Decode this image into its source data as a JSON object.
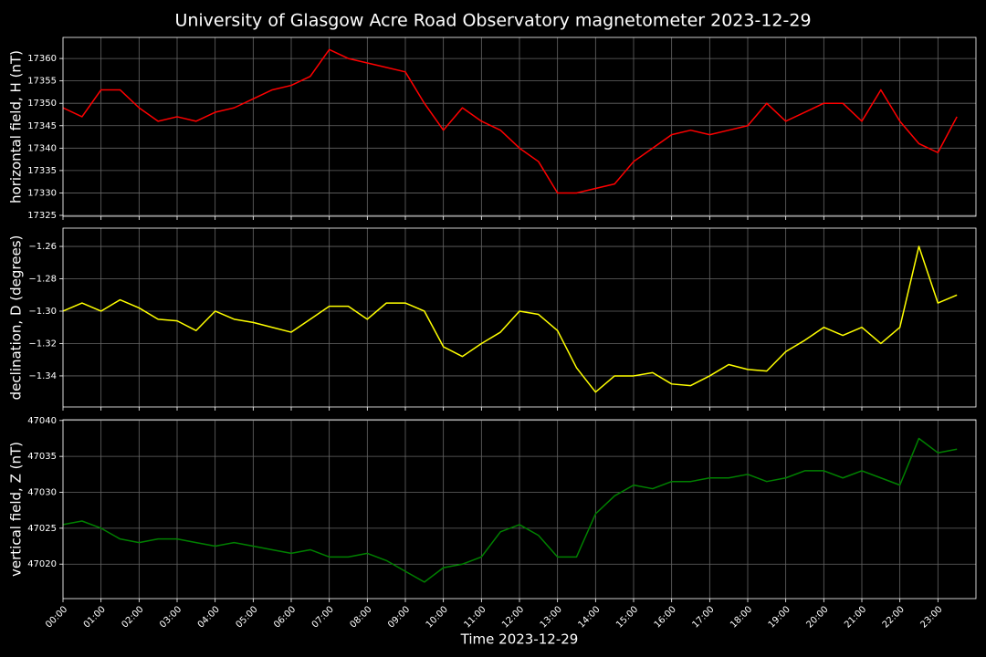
{
  "title": "University of Glasgow Acre Road Observatory magnetometer 2023-12-29",
  "xlabel": "Time 2023-12-29",
  "xlim": [
    0,
    24
  ],
  "xticks": [
    {
      "value": 0,
      "label": "00:00"
    },
    {
      "value": 1,
      "label": "01:00"
    },
    {
      "value": 2,
      "label": "02:00"
    },
    {
      "value": 3,
      "label": "03:00"
    },
    {
      "value": 4,
      "label": "04:00"
    },
    {
      "value": 5,
      "label": "05:00"
    },
    {
      "value": 6,
      "label": "06:00"
    },
    {
      "value": 7,
      "label": "07:00"
    },
    {
      "value": 8,
      "label": "08:00"
    },
    {
      "value": 9,
      "label": "09:00"
    },
    {
      "value": 10,
      "label": "10:00"
    },
    {
      "value": 11,
      "label": "11:00"
    },
    {
      "value": 12,
      "label": "12:00"
    },
    {
      "value": 13,
      "label": "13:00"
    },
    {
      "value": 14,
      "label": "14:00"
    },
    {
      "value": 15,
      "label": "15:00"
    },
    {
      "value": 16,
      "label": "16:00"
    },
    {
      "value": 17,
      "label": "17:00"
    },
    {
      "value": 18,
      "label": "18:00"
    },
    {
      "value": 19,
      "label": "19:00"
    },
    {
      "value": 20,
      "label": "20:00"
    },
    {
      "value": 21,
      "label": "21:00"
    },
    {
      "value": 22,
      "label": "22:00"
    },
    {
      "value": 23,
      "label": "23:00"
    }
  ],
  "x": [
    0,
    0.5,
    1,
    1.5,
    2,
    2.5,
    3,
    3.5,
    4,
    4.5,
    5,
    5.5,
    6,
    6.5,
    7,
    7.5,
    8,
    8.5,
    9,
    9.5,
    10,
    10.5,
    11,
    11.5,
    12,
    12.5,
    13,
    13.5,
    14,
    14.5,
    15,
    15.5,
    16,
    16.5,
    17,
    17.5,
    18,
    18.5,
    19,
    19.5,
    20,
    20.5,
    21,
    21.5,
    22,
    22.5,
    23,
    23.5
  ],
  "chart_data": [
    {
      "type": "line",
      "ylabel": "horizontal field, H (nT)",
      "grid": true,
      "ylim": [
        17324.8,
        17364.7
      ],
      "yticks": [
        17325,
        17330,
        17335,
        17340,
        17345,
        17350,
        17355,
        17360
      ],
      "series": [
        {
          "color": "#ff0000",
          "values": [
            17349,
            17347,
            17353,
            17353,
            17349,
            17346,
            17347,
            17346,
            17348,
            17349,
            17351,
            17353,
            17354,
            17356,
            17362,
            17360,
            17359,
            17358,
            17357,
            17350,
            17344,
            17349,
            17346,
            17344,
            17340,
            17337,
            17330,
            17330,
            17331,
            17332,
            17337,
            17340,
            17343,
            17344,
            17343,
            17344,
            17345,
            17350,
            17346,
            17348,
            17350,
            17350,
            17346,
            17353,
            17346,
            17341,
            17339,
            17347
          ]
        }
      ]
    },
    {
      "type": "line",
      "ylabel": "declination, D (degrees)",
      "grid": true,
      "ylim": [
        -1.3592,
        -1.2487
      ],
      "yticks": [
        {
          "value": -1.34,
          "label": "−1.34"
        },
        {
          "value": -1.32,
          "label": "−1.32"
        },
        {
          "value": -1.3,
          "label": "−1.30"
        },
        {
          "value": -1.28,
          "label": "−1.28"
        },
        {
          "value": -1.26,
          "label": "−1.26"
        }
      ],
      "series": [
        {
          "color": "#ffff00",
          "values": [
            -1.3,
            -1.295,
            -1.3,
            -1.293,
            -1.298,
            -1.305,
            -1.306,
            -1.312,
            -1.3,
            -1.305,
            -1.307,
            -1.31,
            -1.313,
            -1.305,
            -1.297,
            -1.297,
            -1.305,
            -1.295,
            -1.295,
            -1.3,
            -1.322,
            -1.328,
            -1.32,
            -1.313,
            -1.3,
            -1.302,
            -1.312,
            -1.335,
            -1.35,
            -1.34,
            -1.34,
            -1.338,
            -1.345,
            -1.346,
            -1.34,
            -1.333,
            -1.336,
            -1.337,
            -1.325,
            -1.318,
            -1.31,
            -1.315,
            -1.31,
            -1.32,
            -1.31,
            -1.26,
            -1.295,
            -1.29
          ]
        }
      ]
    },
    {
      "type": "line",
      "ylabel": "vertical field, Z (nT)",
      "grid": true,
      "ylim": [
        47015.2,
        47040.1
      ],
      "yticks": [
        47020,
        47025,
        47030,
        47035,
        47040
      ],
      "series": [
        {
          "color": "#008000",
          "values": [
            47025.5,
            47026,
            47025,
            47023.5,
            47023,
            47023.5,
            47023.5,
            47023,
            47022.5,
            47023,
            47022.5,
            47022,
            47021.5,
            47022,
            47021,
            47021,
            47021.5,
            47020.5,
            47019,
            47017.5,
            47019.5,
            47020,
            47021,
            47024.5,
            47025.5,
            47024,
            47021,
            47021,
            47027,
            47029.5,
            47031,
            47030.5,
            47031.5,
            47031.5,
            47032,
            47032,
            47032.5,
            47031.5,
            47032,
            47033,
            47033,
            47032,
            47033,
            47032,
            47031,
            47037.5,
            47035.5,
            47036
          ]
        }
      ]
    }
  ]
}
